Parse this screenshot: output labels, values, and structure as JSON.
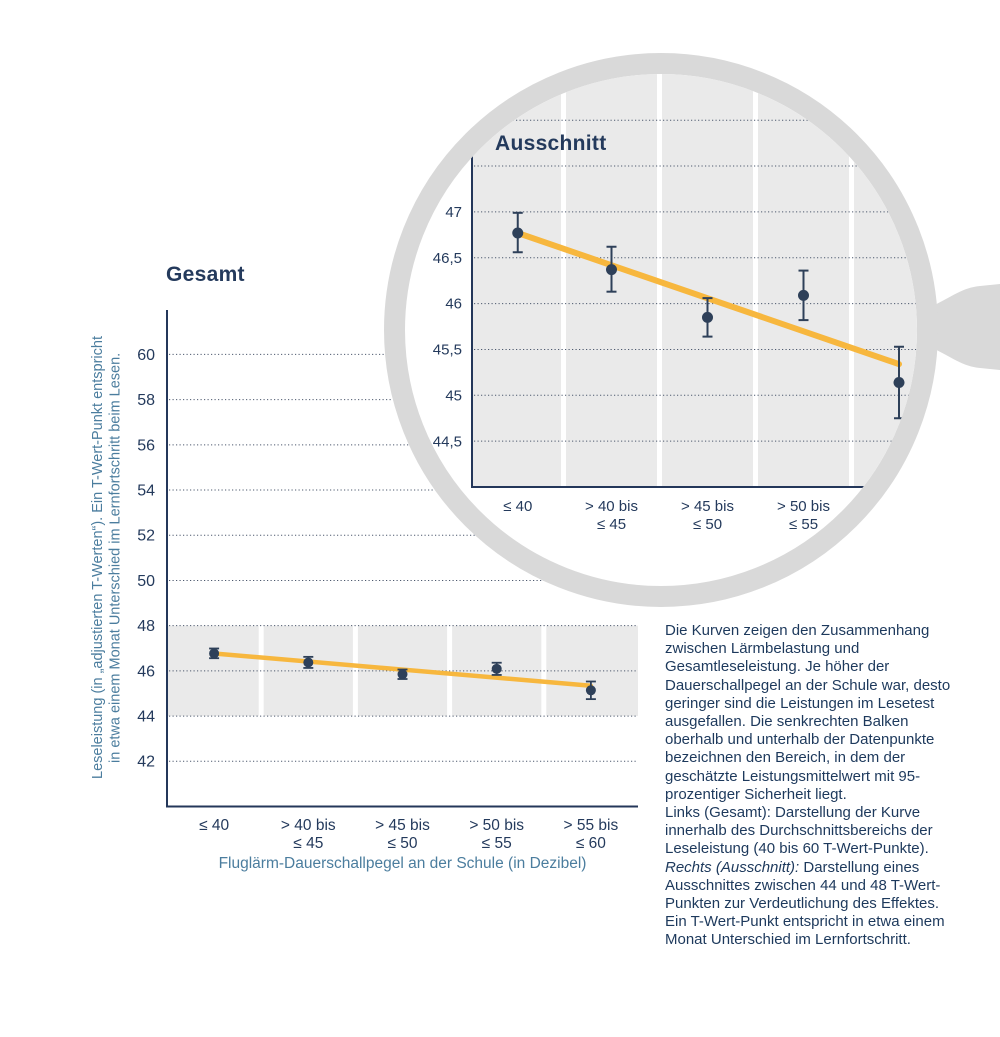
{
  "colors": {
    "navy_text": "#243a5c",
    "axis_navy": "#24375a",
    "steel_blue": "#4b7d9e",
    "trend_orange": "#f7b73e",
    "point_navy": "#2e4059",
    "band_gray": "#eaeaea",
    "ring_gray": "#d9d9d9",
    "grid_dot": "#4d596e"
  },
  "caption": {
    "p1": "Die Kurven zeigen den Zusammenhang zwischen Lärmbelastung und Gesamtleseleistung. Je höher der Dauerschallpegel an der Schule war, desto geringer sind die Leistungen im Lesetest ausgefallen. Die senkrechten Balken oberhalb und unterhalb der Datenpunkte bezeichnen den Bereich, in dem der geschätzte Leistungsmittelwert mit 95-prozentiger Sicherheit liegt.",
    "links_label": "Links (Gesamt):",
    "links_text": " Darstellung der Kurve innerhalb des Durchschnittsbereichs der Leseleistung (40 bis 60 T-Wert-Punkte).",
    "rechts_label": "Rechts (Ausschnitt):",
    "rechts_text": " Darstellung eines Ausschnittes zwischen 44 und 48 T-Wert-Punkten zur Verdeutlichung des Effektes. Ein T-Wert-Punkt entspricht in etwa einem Monat Unterschied im Lernfortschritt."
  },
  "chart_data": [
    {
      "id": "gesamt",
      "type": "scatter",
      "title": "Gesamt",
      "xlabel": "Fluglärm-Dauerschallpegel an der Schule (in Dezibel)",
      "ylabel": "Leseleistung (in „adjustierten T-Werten“). Ein T-Wert-Punkt entspricht\nin etwa einem Monat Unterschied im Lernfortschritt beim Lesen.",
      "ylim": [
        40,
        62
      ],
      "grid": "dotted-horizontal",
      "band": {
        "from": 44,
        "to": 48
      },
      "yticks": [
        {
          "value": 60,
          "label": "60"
        },
        {
          "value": 58,
          "label": "58"
        },
        {
          "value": 56,
          "label": "56"
        },
        {
          "value": 54,
          "label": "54"
        },
        {
          "value": 52,
          "label": "52"
        },
        {
          "value": 50,
          "label": "50"
        },
        {
          "value": 48,
          "label": "48"
        },
        {
          "value": 46,
          "label": "46"
        },
        {
          "value": 44,
          "label": "44"
        },
        {
          "value": 42,
          "label": "42"
        }
      ],
      "gridlines": [
        60,
        58,
        56,
        54,
        52,
        50,
        48,
        46,
        44,
        42
      ],
      "points": [
        {
          "category": "≤ 40",
          "category_lines": [
            "≤ 40"
          ],
          "value": 46.77,
          "ci": [
            46.56,
            46.99
          ]
        },
        {
          "category": "> 40 bis ≤ 45",
          "category_lines": [
            "> 40 bis",
            "≤ 45"
          ],
          "value": 46.37,
          "ci": [
            46.13,
            46.62
          ]
        },
        {
          "category": "> 45 bis ≤ 50",
          "category_lines": [
            "> 45 bis",
            "≤ 50"
          ],
          "value": 45.85,
          "ci": [
            45.64,
            46.06
          ]
        },
        {
          "category": "> 50 bis ≤ 55",
          "category_lines": [
            "> 50 bis",
            "≤ 55"
          ],
          "value": 46.09,
          "ci": [
            45.82,
            46.36
          ]
        },
        {
          "category": "> 55 bis ≤ 60",
          "category_lines": [
            "> 55 bis",
            "≤ 60"
          ],
          "value": 45.14,
          "ci": [
            44.75,
            45.53
          ]
        }
      ],
      "trend": {
        "start_value": 46.77,
        "end_value": 45.34
      }
    },
    {
      "id": "ausschnitt",
      "type": "scatter",
      "title": "Ausschnitt",
      "ylim": [
        44,
        48
      ],
      "grid": "dotted-horizontal",
      "yticks": [
        {
          "value": 47,
          "label": "47"
        },
        {
          "value": 46.5,
          "label": "46,5"
        },
        {
          "value": 46,
          "label": "46"
        },
        {
          "value": 45.5,
          "label": "45,5"
        },
        {
          "value": 45,
          "label": "45"
        },
        {
          "value": 44.5,
          "label": "44,5"
        }
      ],
      "gridlines": [
        48,
        47.5,
        47,
        46.5,
        46,
        45.5,
        45,
        44.5
      ],
      "visible_category_count": 4,
      "points": [
        {
          "category": "≤ 40",
          "category_lines": [
            "≤ 40"
          ],
          "value": 46.77,
          "ci": [
            46.56,
            46.99
          ]
        },
        {
          "category": "> 40 bis ≤ 45",
          "category_lines": [
            "> 40 bis",
            "≤ 45"
          ],
          "value": 46.37,
          "ci": [
            46.13,
            46.62
          ]
        },
        {
          "category": "> 45 bis ≤ 50",
          "category_lines": [
            "> 45 bis",
            "≤ 50"
          ],
          "value": 45.85,
          "ci": [
            45.64,
            46.06
          ]
        },
        {
          "category": "> 50 bis ≤ 55",
          "category_lines": [
            "> 50 bis",
            "≤ 55"
          ],
          "value": 46.09,
          "ci": [
            45.82,
            46.36
          ]
        },
        {
          "category": "> 55 bis ≤ 60",
          "category_lines": [],
          "value": 45.14,
          "ci": [
            44.75,
            45.53
          ]
        }
      ],
      "trend": {
        "start_value": 46.77,
        "end_value": 45.34
      }
    }
  ]
}
